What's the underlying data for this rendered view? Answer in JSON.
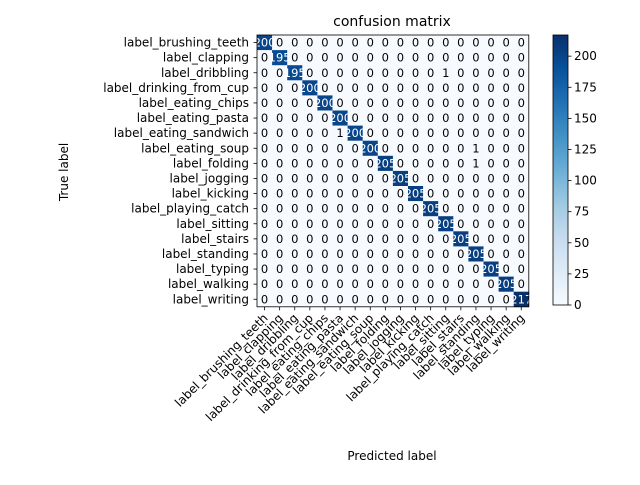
{
  "chart_data": {
    "type": "heatmap",
    "title": "confusion matrix",
    "xlabel": "Predicted label",
    "ylabel": "True label",
    "labels": [
      "label_brushing_teeth",
      "label_clapping",
      "label_dribbling",
      "label_drinking_from_cup",
      "label_eating_chips",
      "label_eating_pasta",
      "label_eating_sandwich",
      "label_eating_soup",
      "label_folding",
      "label_jogging",
      "label_kicking",
      "label_playing_catch",
      "label_sitting",
      "label_stairs",
      "label_standing",
      "label_typing",
      "label_walking",
      "label_writing"
    ],
    "diagonal": [
      200,
      195,
      195,
      200,
      200,
      200,
      200,
      200,
      205,
      205,
      205,
      205,
      205,
      205,
      205,
      205,
      205,
      217
    ],
    "off_diagonal": [
      {
        "row": 2,
        "col": 12,
        "value": 1
      },
      {
        "row": 6,
        "col": 5,
        "value": 1
      },
      {
        "row": 7,
        "col": 14,
        "value": 1
      },
      {
        "row": 8,
        "col": 14,
        "value": 1
      }
    ],
    "colorbar": {
      "min": 0,
      "max": 217,
      "ticks": [
        0,
        25,
        50,
        75,
        100,
        125,
        150,
        175,
        200
      ],
      "colormap": "Blues"
    },
    "grid": false
  }
}
